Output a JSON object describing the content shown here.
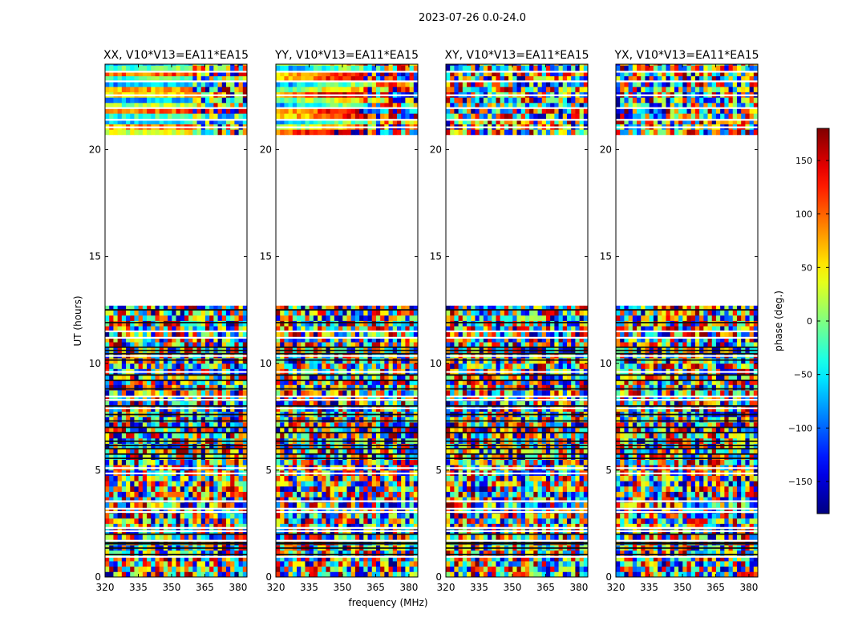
{
  "figure": {
    "suptitle": "2023-07-26 0.0-24.0",
    "xlabel": "frequency (MHz)",
    "ylabel": "UT (hours)",
    "colorbar_label": "phase (deg.)",
    "colorbar_ticks": [
      "150",
      "100",
      "50",
      "0",
      "−50",
      "−100",
      "−150"
    ],
    "colorbar_tick_values": [
      150,
      100,
      50,
      0,
      -50,
      -100,
      -150
    ]
  },
  "chart_data": {
    "type": "heatmap",
    "colormap": "jet",
    "value_range": [
      -180,
      180
    ],
    "xlim": [
      320,
      384
    ],
    "ylim": [
      0,
      24
    ],
    "xticks": [
      320,
      335,
      350,
      365,
      380
    ],
    "xtick_labels": [
      "320",
      "335",
      "350",
      "365",
      "380"
    ],
    "yticks": [
      0,
      5,
      10,
      15,
      20
    ],
    "ytick_labels": [
      "0",
      "5",
      "10",
      "15",
      "20"
    ],
    "gap_hours": [
      12.7,
      20.7
    ],
    "panels": [
      {
        "title": "XX, V10*V13=EA11*EA15",
        "pol": "XX"
      },
      {
        "title": "YY, V10*V13=EA11*EA15",
        "pol": "YY"
      },
      {
        "title": "XY, V10*V13=EA11*EA15",
        "pol": "XY"
      },
      {
        "title": "YX, V10*V13=EA11*EA15",
        "pol": "YX"
      }
    ]
  }
}
